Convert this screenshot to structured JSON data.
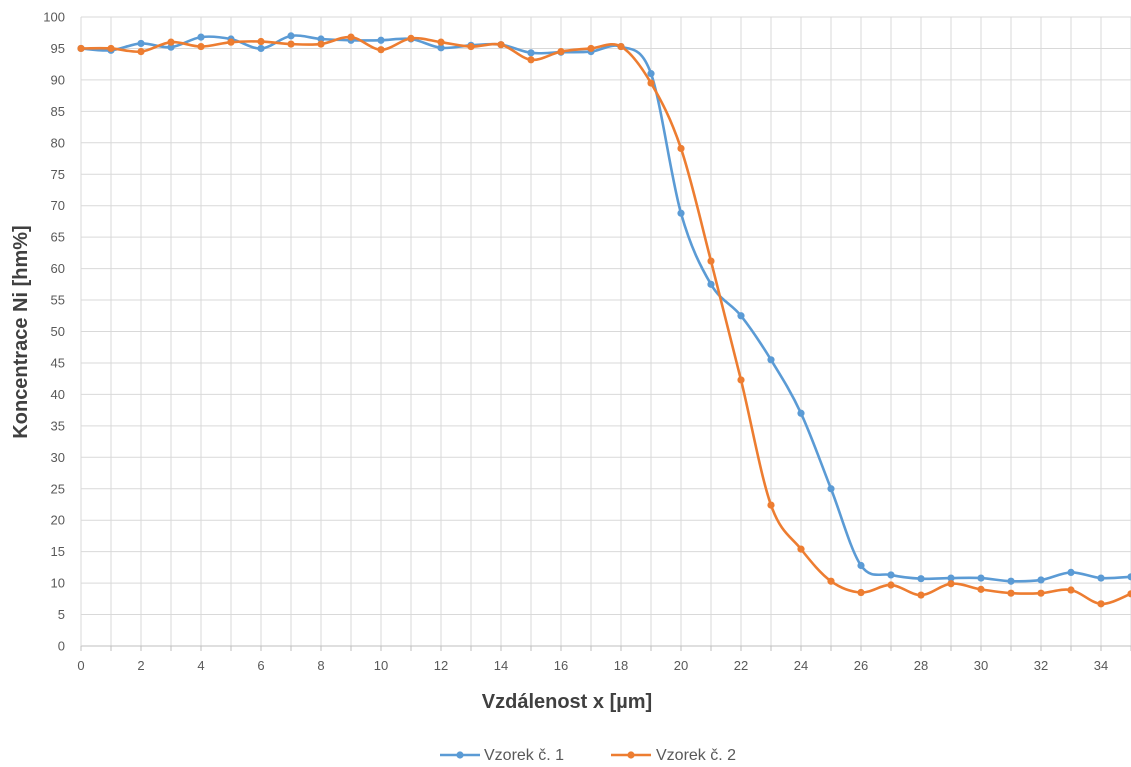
{
  "chart_data": {
    "type": "line",
    "title": "",
    "xlabel": "Vzdálenost x [µm]",
    "ylabel": "Koncentrace Ni [hm%]",
    "xlim": [
      0,
      35
    ],
    "ylim": [
      0,
      100
    ],
    "x_ticks": [
      0,
      2,
      4,
      6,
      8,
      10,
      12,
      14,
      16,
      18,
      20,
      22,
      24,
      26,
      28,
      30,
      32,
      34
    ],
    "y_ticks": [
      0,
      5,
      10,
      15,
      20,
      25,
      30,
      35,
      40,
      45,
      50,
      55,
      60,
      65,
      70,
      75,
      80,
      85,
      90,
      95,
      100
    ],
    "grid": true,
    "legend_position": "bottom",
    "x": [
      0,
      1,
      2,
      3,
      4,
      5,
      6,
      7,
      8,
      9,
      10,
      11,
      12,
      13,
      14,
      15,
      16,
      17,
      18,
      19,
      20,
      21,
      22,
      23,
      24,
      25,
      26,
      27,
      28,
      29,
      30,
      31,
      32,
      33,
      34,
      35
    ],
    "series": [
      {
        "name": "Vzorek č. 1",
        "color": "#5b9bd5",
        "values": [
          95.0,
          94.7,
          95.8,
          95.2,
          96.8,
          96.5,
          95.0,
          97.0,
          96.5,
          96.3,
          96.3,
          96.5,
          95.1,
          95.5,
          95.6,
          94.3,
          94.4,
          94.5,
          95.3,
          91.0,
          68.8,
          57.5,
          52.5,
          45.5,
          37.0,
          25.0,
          12.8,
          11.3,
          10.7,
          10.8,
          10.8,
          10.3,
          10.5,
          11.7,
          10.8,
          11.0
        ]
      },
      {
        "name": "Vzorek č. 2",
        "color": "#ed7d31",
        "values": [
          95.0,
          95.0,
          94.5,
          96.0,
          95.3,
          96.0,
          96.1,
          95.7,
          95.7,
          96.8,
          94.8,
          96.6,
          96.0,
          95.3,
          95.6,
          93.2,
          94.5,
          95.0,
          95.3,
          89.5,
          79.1,
          61.2,
          42.3,
          22.4,
          15.4,
          10.3,
          8.5,
          9.7,
          8.1,
          9.9,
          9.0,
          8.4,
          8.4,
          8.9,
          6.7,
          8.3
        ]
      }
    ]
  }
}
